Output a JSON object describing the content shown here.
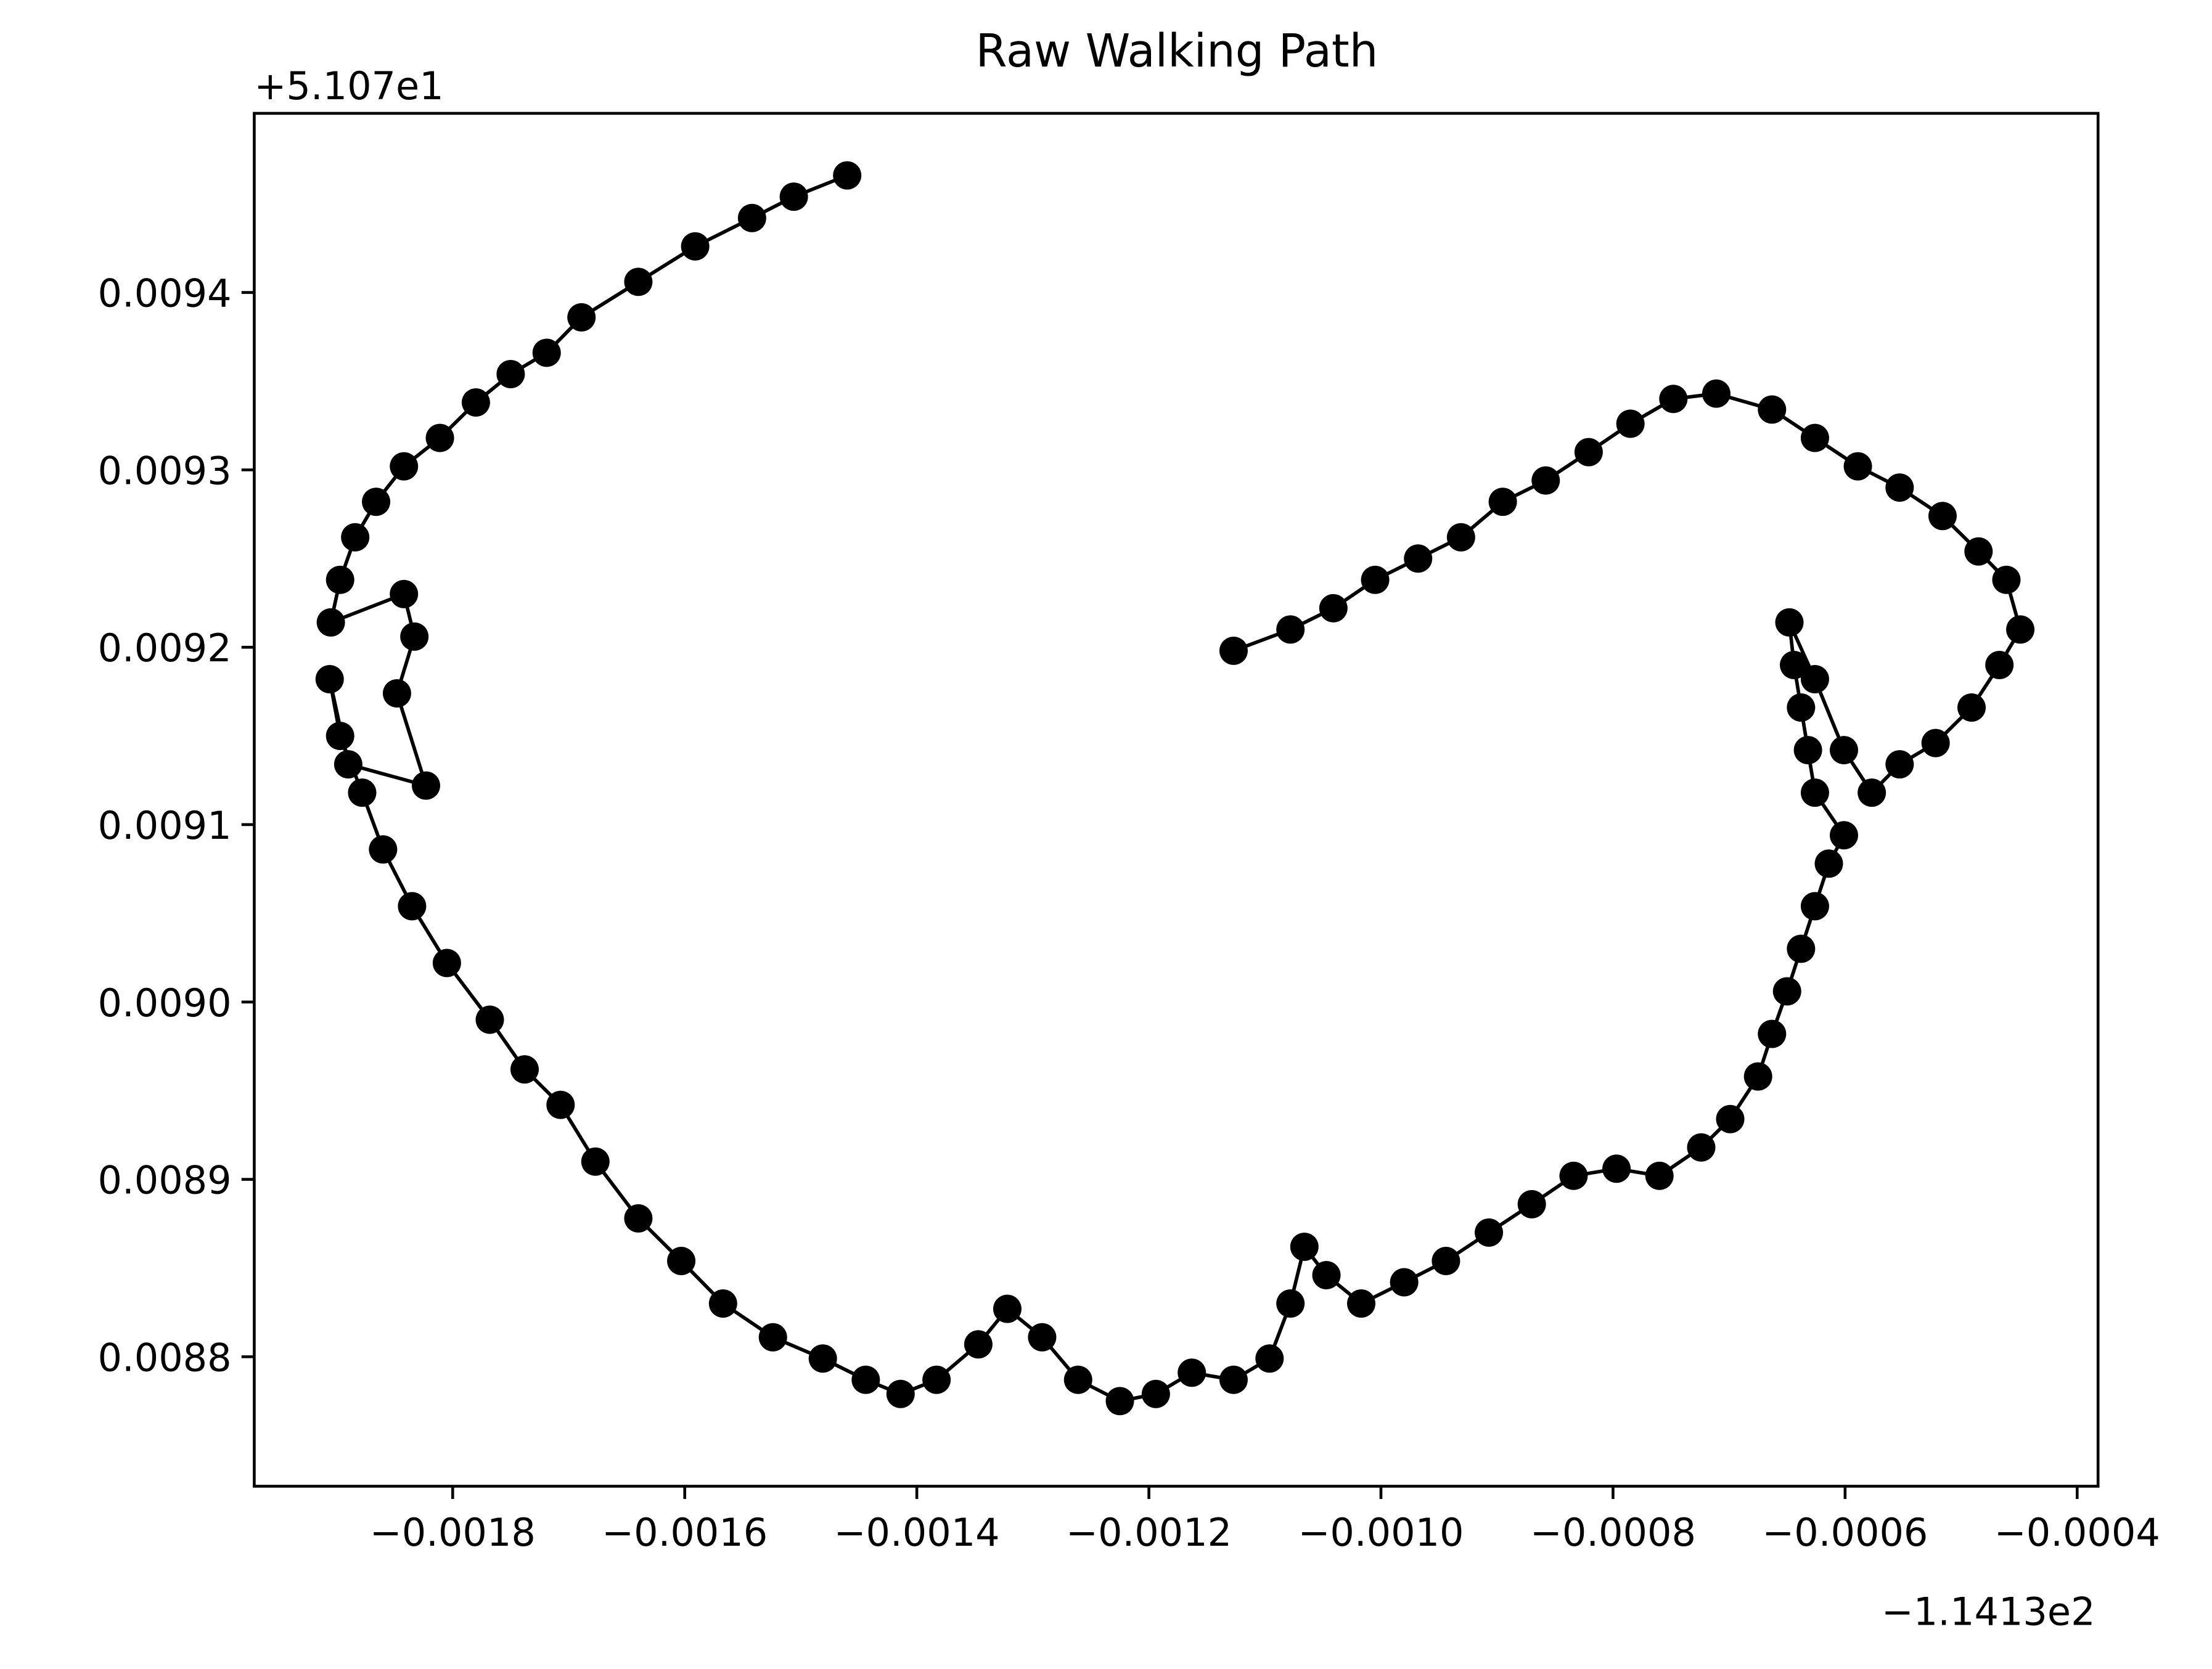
{
  "chart_data": {
    "type": "line",
    "title": "Raw Walking Path",
    "x_offset_label": "−1.1413e2",
    "y_offset_label": "+5.107e1",
    "color": "#000000",
    "marker": "o",
    "x": [
      -0.00146,
      -0.001506,
      -0.001542,
      -0.001591,
      -0.00164,
      -0.001689,
      -0.001719,
      -0.00175,
      -0.00178,
      -0.001811,
      -0.001842,
      -0.001866,
      -0.001884,
      -0.001897,
      -0.001905,
      -0.001842,
      -0.001833,
      -0.001848,
      -0.001823,
      -0.00189,
      -0.001906,
      -0.001897,
      -0.001878,
      -0.00186,
      -0.001835,
      -0.001805,
      -0.001768,
      -0.001738,
      -0.001707,
      -0.001677,
      -0.00164,
      -0.001603,
      -0.001567,
      -0.001524,
      -0.001481,
      -0.001444,
      -0.001414,
      -0.001383,
      -0.001347,
      -0.001322,
      -0.001292,
      -0.001261,
      -0.001225,
      -0.001194,
      -0.001163,
      -0.001127,
      -0.001096,
      -0.001078,
      -0.001066,
      -0.001047,
      -0.001017,
      -0.00098,
      -0.000944,
      -0.000907,
      -0.00087,
      -0.000834,
      -0.000797,
      -0.00076,
      -0.000724,
      -0.000699,
      -0.000675,
      -0.000663,
      -0.00065,
      -0.000638,
      -0.000626,
      -0.000614,
      -0.000601,
      -0.000626,
      -0.000632,
      -0.000638,
      -0.000644,
      -0.000648,
      -0.000626,
      -0.000601,
      -0.000577,
      -0.000553,
      -0.000522,
      -0.000491,
      -0.000467,
      -0.000449,
      -0.000461,
      -0.000485,
      -0.000516,
      -0.000553,
      -0.000589,
      -0.000626,
      -0.000663,
      -0.000711,
      -0.000748,
      -0.000785,
      -0.000821,
      -0.000858,
      -0.000895,
      -0.000931,
      -0.000968,
      -0.001005,
      -0.001041,
      -0.001078,
      -0.001127
    ],
    "values": [
      0.009466,
      0.009454,
      0.009442,
      0.009426,
      0.009406,
      0.009386,
      0.009366,
      0.009354,
      0.009338,
      0.009318,
      0.009302,
      0.009282,
      0.009262,
      0.009238,
      0.009214,
      0.00923,
      0.009206,
      0.009174,
      0.009122,
      0.009134,
      0.009182,
      0.00915,
      0.009118,
      0.009086,
      0.009054,
      0.009022,
      0.00899,
      0.008962,
      0.008942,
      0.00891,
      0.008878,
      0.008854,
      0.00883,
      0.008811,
      0.008799,
      0.008787,
      0.008779,
      0.008787,
      0.008807,
      0.008827,
      0.008811,
      0.008787,
      0.008775,
      0.008779,
      0.008791,
      0.008787,
      0.008799,
      0.00883,
      0.008862,
      0.008846,
      0.00883,
      0.008842,
      0.008854,
      0.00887,
      0.008886,
      0.008902,
      0.008906,
      0.008902,
      0.008918,
      0.008934,
      0.008958,
      0.008982,
      0.009006,
      0.00903,
      0.009054,
      0.009078,
      0.009094,
      0.009118,
      0.009142,
      0.009166,
      0.00919,
      0.009214,
      0.009182,
      0.009142,
      0.009118,
      0.009134,
      0.009146,
      0.009166,
      0.00919,
      0.00921,
      0.009238,
      0.009254,
      0.009274,
      0.00929,
      0.009302,
      0.009318,
      0.009334,
      0.009343,
      0.00934,
      0.009326,
      0.00931,
      0.009294,
      0.009282,
      0.009262,
      0.00925,
      0.009238,
      0.009222,
      0.00921,
      0.009198
    ],
    "xlim": [
      -0.001971,
      -0.000382
    ],
    "ylim": [
      0.008727,
      0.009501
    ],
    "xticks": [
      {
        "value": -0.0018,
        "label": "−0.0018"
      },
      {
        "value": -0.0016,
        "label": "−0.0016"
      },
      {
        "value": -0.0014,
        "label": "−0.0014"
      },
      {
        "value": -0.0012,
        "label": "−0.0012"
      },
      {
        "value": -0.001,
        "label": "−0.0010"
      },
      {
        "value": -0.0008,
        "label": "−0.0008"
      },
      {
        "value": -0.0006,
        "label": "−0.0006"
      },
      {
        "value": -0.0004,
        "label": "−0.0004"
      }
    ],
    "yticks": [
      0.0088,
      0.0089,
      {
        "value": 0.009,
        "label": "0.0090"
      },
      0.0091,
      0.0092,
      0.0093,
      0.0094
    ]
  }
}
